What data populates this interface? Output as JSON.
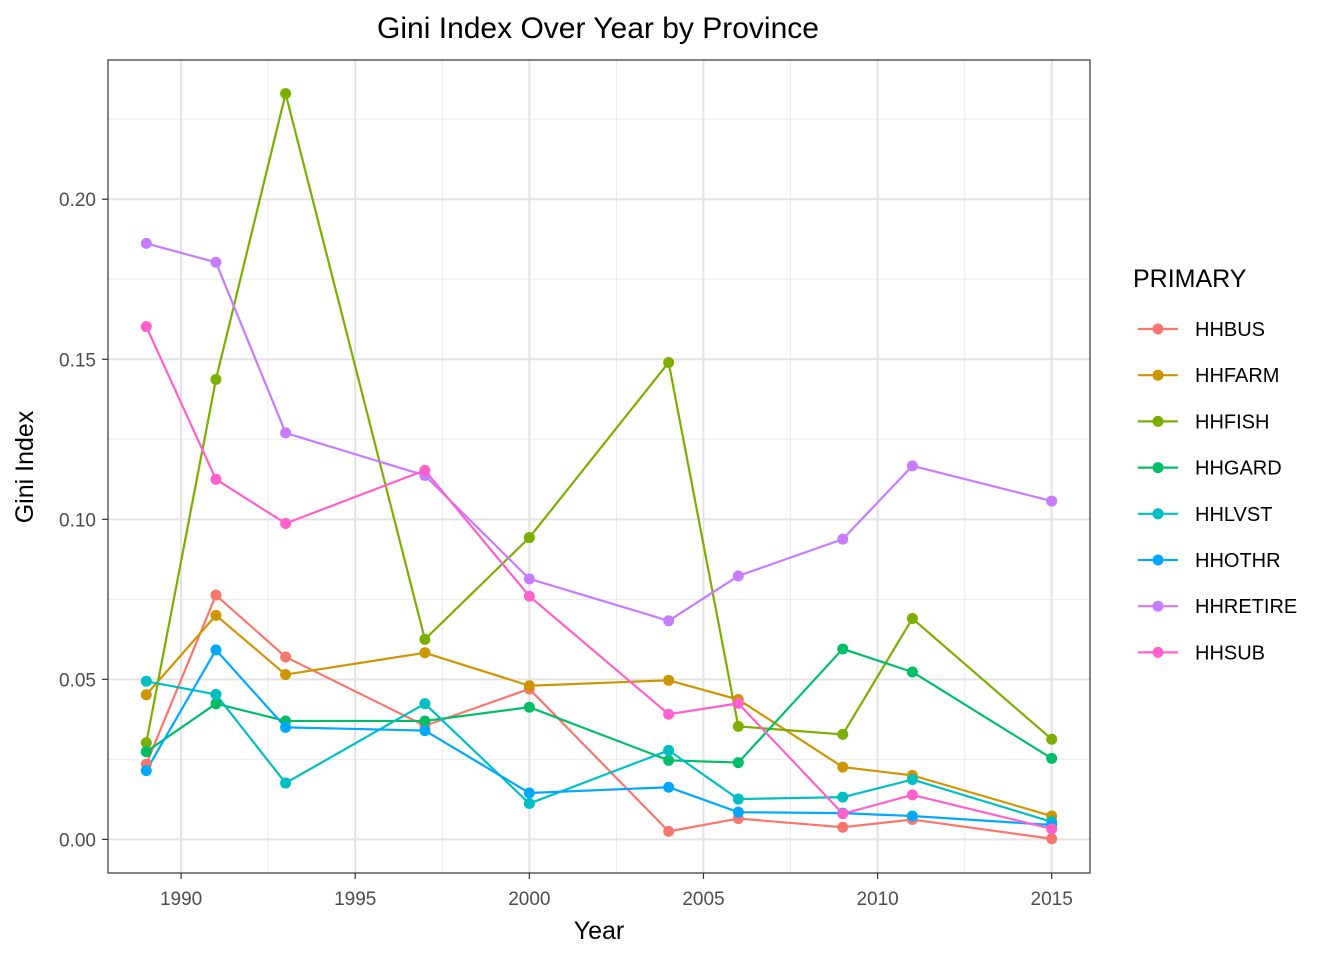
{
  "chart_data": {
    "type": "line",
    "title": "Gini Index Over Year by Province",
    "xlabel": "Year",
    "ylabel": "Gini Index",
    "xlim": [
      1987.9,
      2016.1
    ],
    "ylim": [
      -0.0105,
      0.2435
    ],
    "x_ticks": [
      1990,
      1995,
      2000,
      2005,
      2010,
      2015
    ],
    "x_tick_labels": [
      "1990",
      "1995",
      "2000",
      "2005",
      "2010",
      "2015"
    ],
    "y_ticks": [
      0.0,
      0.05,
      0.1,
      0.15,
      0.2
    ],
    "y_tick_labels": [
      "0.00",
      "0.05",
      "0.10",
      "0.15",
      "0.20"
    ],
    "grid": true,
    "legend": {
      "title": "PRIMARY",
      "position": "right"
    },
    "x": [
      1989,
      1991,
      1993,
      1997,
      2000,
      2004,
      2006,
      2009,
      2011,
      2015
    ],
    "series": [
      {
        "name": "HHBUS",
        "color": "#F8766D",
        "values": [
          0.0235,
          0.0763,
          0.057,
          0.0355,
          0.047,
          0.0025,
          0.0065,
          0.0038,
          0.0062,
          0.0002
        ]
      },
      {
        "name": "HHFARM",
        "color": "#CD9600",
        "values": [
          0.0452,
          0.07,
          0.0515,
          0.0583,
          0.048,
          0.0497,
          0.0437,
          0.0226,
          0.02,
          0.0073
        ]
      },
      {
        "name": "HHFISH",
        "color": "#7CAE00",
        "values": [
          0.0302,
          0.1437,
          0.233,
          0.0625,
          0.0943,
          0.149,
          0.0353,
          0.0328,
          0.069,
          0.0313
        ]
      },
      {
        "name": "HHGARD",
        "color": "#00BE67",
        "values": [
          0.0274,
          0.0424,
          0.037,
          0.037,
          0.0413,
          0.0247,
          0.024,
          0.0595,
          0.0523,
          0.0253
        ]
      },
      {
        "name": "HHLVST",
        "color": "#00BFC4",
        "values": [
          0.0494,
          0.0453,
          0.0176,
          0.0424,
          0.0112,
          0.0278,
          0.0126,
          0.0132,
          0.0187,
          0.0055
        ]
      },
      {
        "name": "HHOTHR",
        "color": "#00A9FF",
        "values": [
          0.0215,
          0.0592,
          0.035,
          0.034,
          0.0145,
          0.0163,
          0.0085,
          0.0082,
          0.0073,
          0.0045
        ]
      },
      {
        "name": "HHRETIRE",
        "color": "#C77CFF",
        "values": [
          0.1862,
          0.1803,
          0.127,
          0.1137,
          0.0814,
          0.0683,
          0.0823,
          0.0938,
          0.1167,
          0.1057
        ]
      },
      {
        "name": "HHSUB",
        "color": "#FF61CC",
        "values": [
          0.1602,
          0.1125,
          0.0987,
          0.1153,
          0.076,
          0.0391,
          0.0425,
          0.008,
          0.0139,
          0.0033
        ]
      }
    ]
  }
}
